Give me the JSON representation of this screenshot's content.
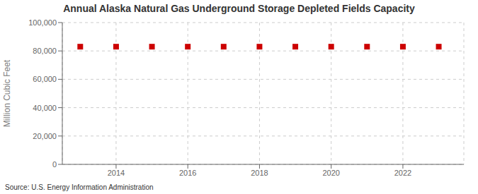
{
  "chart_data": {
    "type": "scatter",
    "title": "Annual Alaska Natural Gas Underground Storage Depleted Fields Capacity",
    "ylabel": "Million Cubic Feet",
    "source": "Source: U.S. Energy Information Administration",
    "x": [
      2013,
      2014,
      2015,
      2016,
      2017,
      2018,
      2019,
      2020,
      2021,
      2022,
      2023
    ],
    "values": [
      83000,
      83000,
      83000,
      83000,
      83000,
      83000,
      83000,
      83000,
      83000,
      83000,
      83000
    ],
    "color": "#cc0000",
    "marker": "square",
    "xlim": [
      2012.5,
      2023.7
    ],
    "xticks": [
      2014,
      2016,
      2018,
      2020,
      2022
    ],
    "ylim": [
      0,
      100000
    ],
    "yticks": [
      0,
      {
        "value": 20000,
        "label": "20,000"
      },
      {
        "value": 40000,
        "label": "40,000"
      },
      {
        "value": 60000,
        "label": "60,000"
      },
      {
        "value": 80000,
        "label": "80,000"
      },
      {
        "value": 100000,
        "label": "100,000"
      }
    ],
    "grid": true
  }
}
